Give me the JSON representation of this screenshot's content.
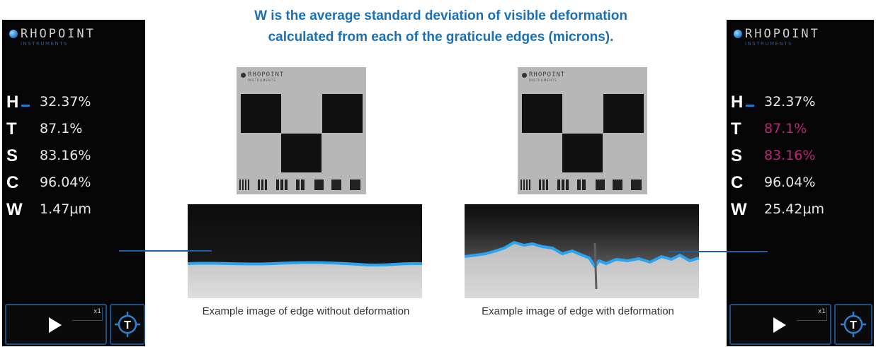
{
  "title": {
    "line1": "W is the average standard deviation of visible deformation",
    "line2": "calculated from each of the graticule edges (microns)."
  },
  "brand": {
    "name": "RHOPOINT",
    "sub": "INSTRUMENTS"
  },
  "devices": [
    {
      "readings": [
        {
          "letter": "H",
          "value": "32.37%",
          "highlight": false
        },
        {
          "letter": "T",
          "value": "87.1%",
          "highlight": false
        },
        {
          "letter": "S",
          "value": "83.16%",
          "highlight": false
        },
        {
          "letter": "C",
          "value": "96.04%",
          "highlight": false
        },
        {
          "letter": "W",
          "value": "1.47µm",
          "highlight": false
        }
      ],
      "speed_label": "x1",
      "play_icon": "play-icon",
      "target_icon": "target-t-icon",
      "target_letter": "T"
    },
    {
      "readings": [
        {
          "letter": "H",
          "value": "32.37%",
          "highlight": false
        },
        {
          "letter": "T",
          "value": "87.1%",
          "highlight": true
        },
        {
          "letter": "S",
          "value": "83.16%",
          "highlight": true
        },
        {
          "letter": "C",
          "value": "96.04%",
          "highlight": false
        },
        {
          "letter": "W",
          "value": "25.42µm",
          "highlight": false
        }
      ],
      "speed_label": "x1",
      "play_icon": "play-icon",
      "target_icon": "target-t-icon",
      "target_letter": "T"
    }
  ],
  "captions": {
    "left": "Example image of edge without deformation",
    "right": "Example image of edge with deformation"
  },
  "colors": {
    "title": "#1b6fb5",
    "edge_line": "#2aa3f0",
    "highlight_value": "#c2227e",
    "connector": "#1b5ea3",
    "device_bg": "#050505"
  }
}
